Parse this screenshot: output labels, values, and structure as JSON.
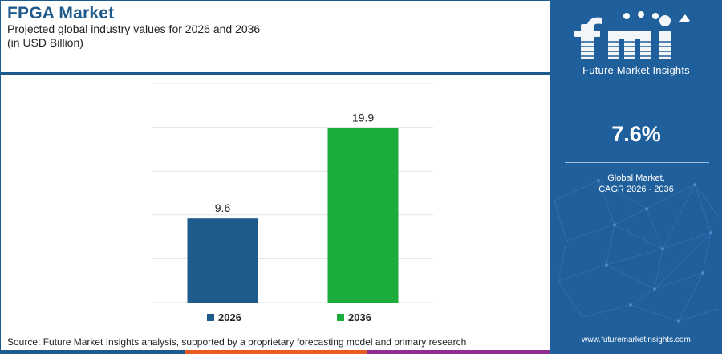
{
  "header": {
    "title": "FPGA Market",
    "subtitle_line1": "Projected global industry values for 2026 and 2036",
    "subtitle_line2": "(in USD Billion)"
  },
  "chart_data": {
    "type": "bar",
    "title": "FPGA Market",
    "subtitle": "Projected global industry values for 2026 and 2036",
    "ylabel": "(in USD Billion)",
    "categories": [
      "2026",
      "2036"
    ],
    "values": [
      9.6,
      19.9
    ],
    "value_labels": [
      "9.6",
      "19.9"
    ],
    "colors": [
      "#1f5a8c",
      "#1aad3c"
    ],
    "ylim": [
      0,
      25
    ],
    "grid": true,
    "legend": "bottom"
  },
  "legend": {
    "items": [
      {
        "label": "2026",
        "color": "#1f5a8c"
      },
      {
        "label": "2036",
        "color": "#1aad3c"
      }
    ]
  },
  "sidebar": {
    "logo_letters": "fmi",
    "logo_text": "Future Market Insights",
    "cagr_value": "7.6%",
    "cagr_label_line1": "Global Market,",
    "cagr_label_line2": "CAGR 2026 - 2036",
    "url": "www.futuremarketinsights.com",
    "background": "#1f5f9c"
  },
  "footer": {
    "source": "Source: Future Market Insights analysis, supported by a proprietary forecasting model and primary research",
    "bar_colors": [
      "#1f5a8c",
      "#e85d1f",
      "#8d2f8f"
    ]
  }
}
